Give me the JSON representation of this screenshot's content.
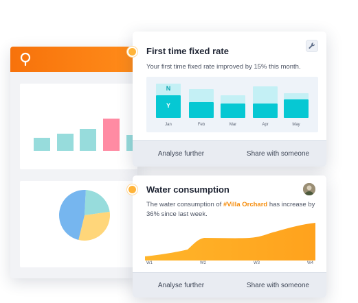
{
  "colors": {
    "orange": "#f7720b",
    "teal": "#06c8d3",
    "teal_light": "#c4f0f5",
    "highlight": "#f58a07",
    "pink": "#ff8ba3",
    "mint": "#97dcdc",
    "pie_blue": "#76b6ef",
    "pie_yellow": "#ffd67a"
  },
  "background_dashboard": {
    "logo_icon": "bulb-icon",
    "bar_colors": [
      "#97dcdc",
      "#97dcdc",
      "#97dcdc",
      "#ff8ba3",
      "#97dcdc"
    ],
    "bar_levels": [
      0.38,
      0.49,
      0.64,
      0.93,
      0.45
    ],
    "pie_segments": [
      {
        "color": "#97dcdc",
        "fraction": 0.22
      },
      {
        "color": "#ffd67a",
        "fraction": 0.31
      },
      {
        "color": "#76b6ef",
        "fraction": 0.47
      }
    ]
  },
  "card1": {
    "title": "First time fixed rate",
    "description": "Your first time fixed rate improved by 15% this month.",
    "icon": "wrench-icon",
    "chart": {
      "months": [
        "Jan",
        "Feb",
        "Mar",
        "Apr",
        "May"
      ],
      "no_label": "N",
      "yes_label": "Y",
      "total_levels": [
        1.0,
        0.83,
        0.65,
        0.92,
        0.71
      ],
      "yes_levels": [
        0.66,
        0.46,
        0.41,
        0.41,
        0.53
      ]
    },
    "analyse_label": "Analyse further",
    "share_label": "Share with someone"
  },
  "card2": {
    "title": "Water consumption",
    "desc_prefix": "The water consumption of ",
    "desc_highlight": "#Villa Orchard",
    "desc_suffix": " has increase by 36% since last week.",
    "avatar_icon": "user-avatar-icon",
    "chart": {
      "type": "area",
      "x": [
        "W1",
        "W2",
        "W3",
        "W4"
      ]
    },
    "analyse_label": "Analyse further",
    "share_label": "Share with someone"
  }
}
